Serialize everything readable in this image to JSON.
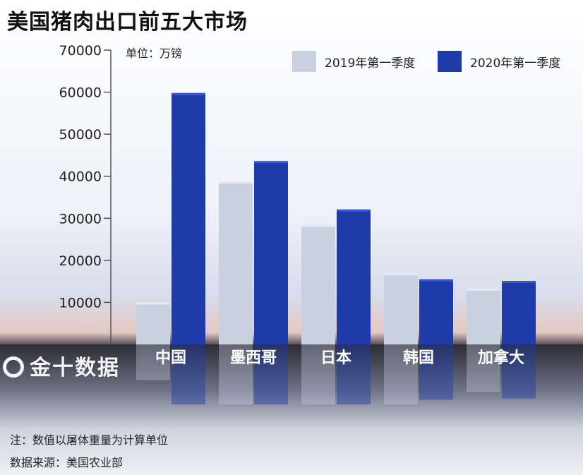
{
  "title": "美国猪肉出口前五大市场",
  "unit_label": "单位：万镑",
  "note_basis": "注：数值以屠体重量为计算单位",
  "note_source": "数据来源：美国农业部",
  "watermark": "金十数据",
  "colors": {
    "series_2019": "#c9d1e1",
    "series_2020": "#1f3ba8"
  },
  "chart_data": {
    "type": "bar",
    "categories": [
      "中国",
      "墨西哥",
      "日本",
      "韩国",
      "加拿大"
    ],
    "series": [
      {
        "name": "2019年第一季度",
        "values": [
          10000,
          38800,
          28500,
          17000,
          13300
        ]
      },
      {
        "name": "2020年第一季度",
        "values": [
          59800,
          43600,
          32100,
          15500,
          15100
        ]
      }
    ],
    "yticks": [
      10000,
      20000,
      30000,
      40000,
      50000,
      60000,
      70000
    ],
    "ylim": [
      0,
      70000
    ],
    "legend_position": "top-right"
  }
}
